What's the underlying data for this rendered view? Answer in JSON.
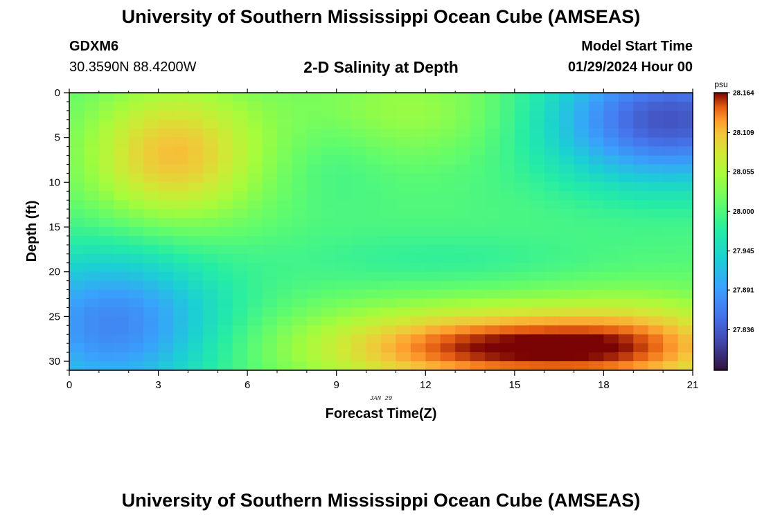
{
  "header": {
    "title": "University of Southern Mississippi Ocean Cube (AMSEAS)",
    "station_id": "GDXM6",
    "coordinates": "30.3590N  88.4200W",
    "plot_title": "2-D Salinity at Depth",
    "start_label": "Model Start Time",
    "start_value": "01/29/2024 Hour 00"
  },
  "footer": {
    "title": "University of Southern Mississippi Ocean Cube (AMSEAS)"
  },
  "chart_data": {
    "type": "heatmap",
    "title": "2-D Salinity at Depth",
    "xlabel": "Forecast Time(Z)",
    "ylabel": "Depth (ft)",
    "date_label": "JAN 29",
    "xlim": [
      0,
      21
    ],
    "ylim": [
      0,
      31
    ],
    "x_ticks": [
      0,
      3,
      6,
      9,
      12,
      15,
      18,
      21
    ],
    "y_ticks": [
      0,
      5,
      10,
      15,
      20,
      25,
      30
    ],
    "colorbar": {
      "unit": "psu",
      "min": 27.78,
      "max": 28.164,
      "ticks": [
        "28.164",
        "28.109",
        "28.055",
        "28.000",
        "27.945",
        "27.891",
        "27.836"
      ],
      "tick_values": [
        28.164,
        28.109,
        28.055,
        28.0,
        27.945,
        27.891,
        27.836
      ]
    },
    "field_features": [
      {
        "feature": "high salinity",
        "x": 3.5,
        "y": 6,
        "value": 28.1
      },
      {
        "feature": "high salinity",
        "x": 14.5,
        "y": 28.5,
        "value": 28.16
      },
      {
        "feature": "low salinity",
        "x": 19.5,
        "y": 3,
        "value": 27.84
      },
      {
        "feature": "low salinity",
        "x": 1.5,
        "y": 26,
        "value": 27.87
      },
      {
        "feature": "moderate",
        "x": 12.5,
        "y": 18,
        "value": 28.0
      }
    ]
  }
}
